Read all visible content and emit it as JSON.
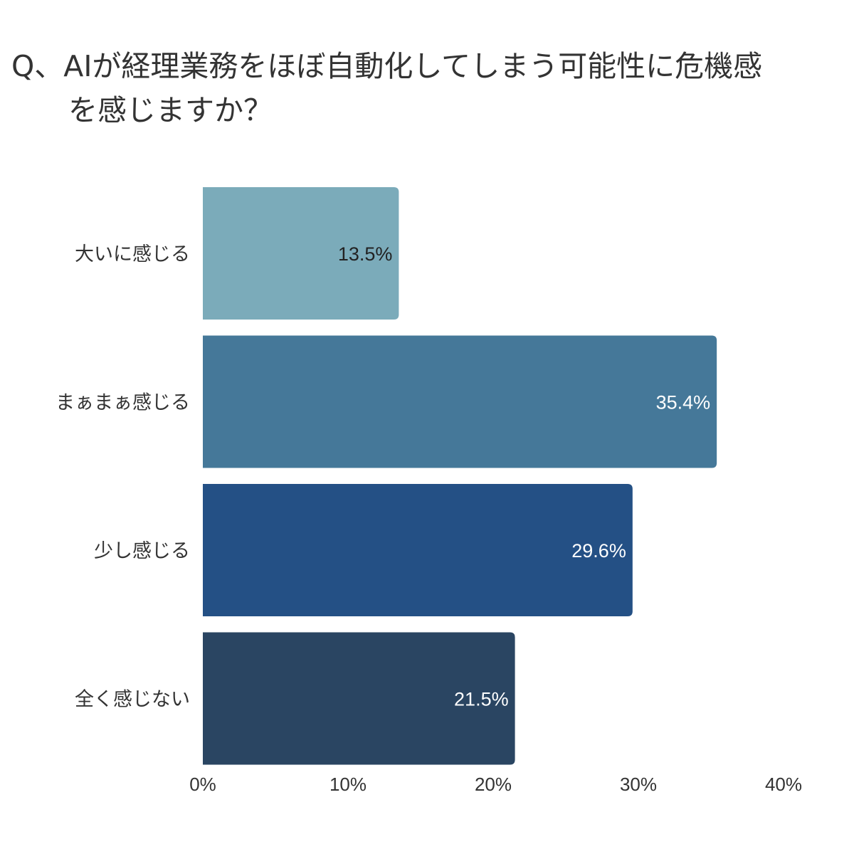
{
  "question": {
    "line1": "Q、AIが経理業務をほぼ自動化してしまう可能性に危機感",
    "line2": "を感じますか？"
  },
  "chart_data": {
    "type": "bar",
    "orientation": "horizontal",
    "title": "Q、AIが経理業務をほぼ自動化してしまう可能性に危機感を感じますか？",
    "categories": [
      "大いに感じる",
      "まぁまぁ感じる",
      "少し感じる",
      "全く感じない"
    ],
    "values": [
      13.5,
      35.4,
      29.6,
      21.5
    ],
    "value_labels": [
      "13.5%",
      "35.4%",
      "29.6%",
      "21.5%"
    ],
    "bar_colors": [
      "#7BABBA",
      "#457899",
      "#245085",
      "#2A4562"
    ],
    "label_colors": [
      "#222222",
      "#ffffff",
      "#ffffff",
      "#ffffff"
    ],
    "xlim": [
      0,
      40
    ],
    "x_ticks": [
      0,
      10,
      20,
      30,
      40
    ],
    "x_tick_labels": [
      "0%",
      "10%",
      "20%",
      "30%",
      "40%"
    ],
    "xlabel": "",
    "ylabel": "",
    "grid": false,
    "legend": "none"
  }
}
